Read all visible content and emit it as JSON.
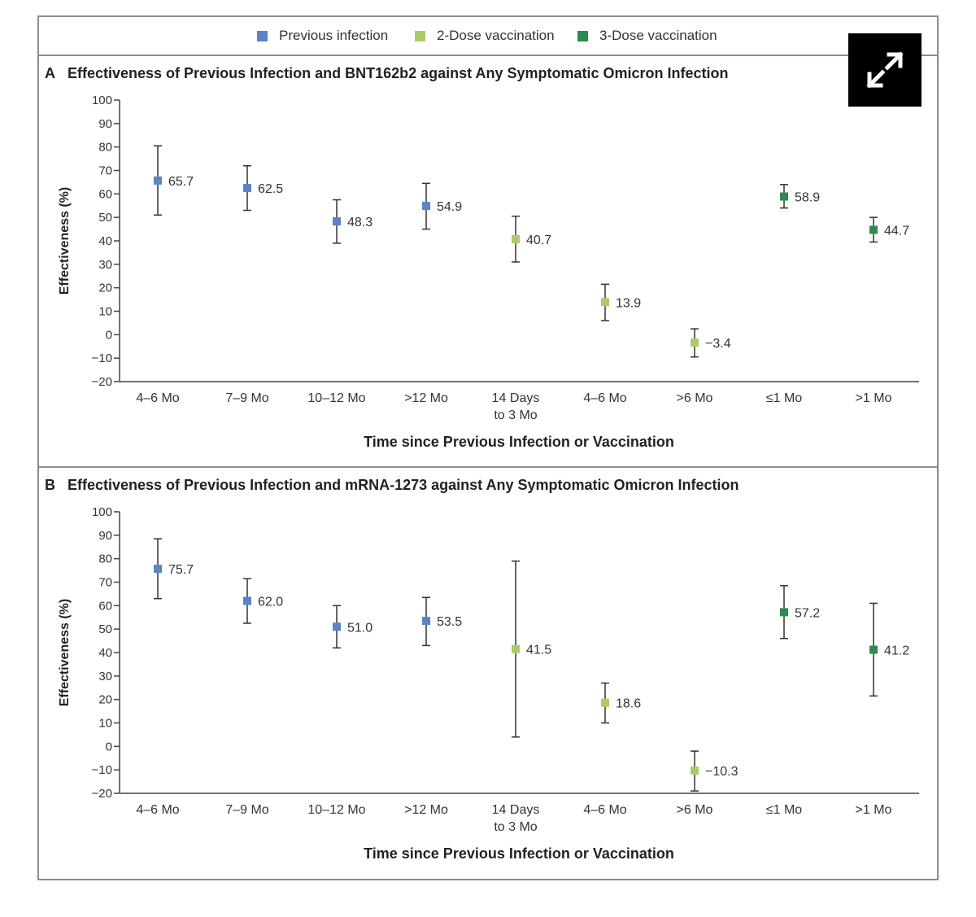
{
  "legend": [
    {
      "label": "Previous infection",
      "color": "#5b84c4"
    },
    {
      "label": "2-Dose vaccination",
      "color": "#a9cc6b"
    },
    {
      "label": "3-Dose vaccination",
      "color": "#2f8a4f"
    }
  ],
  "expand_icon": "expand-arrows-icon",
  "chart_data": [
    {
      "type": "scatter",
      "panel_letter": "A",
      "title": "Effectiveness of Previous Infection and BNT162b2 against Any Symptomatic Omicron Infection",
      "xlabel": "Time since Previous Infection or Vaccination",
      "ylabel": "Effectiveness (%)",
      "ylim": [
        -20,
        100
      ],
      "yticks": [
        100,
        90,
        80,
        70,
        60,
        50,
        40,
        30,
        20,
        10,
        0,
        -10,
        -20
      ],
      "categories": [
        [
          "4–6 Mo"
        ],
        [
          "7–9 Mo"
        ],
        [
          "10–12 Mo"
        ],
        [
          ">12 Mo"
        ],
        [
          "14 Days",
          "to 3 Mo"
        ],
        [
          "4–6 Mo"
        ],
        [
          ">6 Mo"
        ],
        [
          "≤1 Mo"
        ],
        [
          ">1 Mo"
        ]
      ],
      "points": [
        {
          "group": 0,
          "value": 65.7,
          "label": "65.7",
          "low": 51.0,
          "high": 80.5
        },
        {
          "group": 0,
          "value": 62.5,
          "label": "62.5",
          "low": 53.0,
          "high": 72.0
        },
        {
          "group": 0,
          "value": 48.3,
          "label": "48.3",
          "low": 39.0,
          "high": 57.5
        },
        {
          "group": 0,
          "value": 54.9,
          "label": "54.9",
          "low": 45.0,
          "high": 64.5
        },
        {
          "group": 1,
          "value": 40.7,
          "label": "40.7",
          "low": 31.0,
          "high": 50.5
        },
        {
          "group": 1,
          "value": 13.9,
          "label": "13.9",
          "low": 6.0,
          "high": 21.5
        },
        {
          "group": 1,
          "value": -3.4,
          "label": "−3.4",
          "low": -9.5,
          "high": 2.5
        },
        {
          "group": 2,
          "value": 58.9,
          "label": "58.9",
          "low": 54.0,
          "high": 64.0
        },
        {
          "group": 2,
          "value": 44.7,
          "label": "44.7",
          "low": 39.5,
          "high": 50.0
        }
      ]
    },
    {
      "type": "scatter",
      "panel_letter": "B",
      "title": "Effectiveness of Previous Infection and mRNA-1273 against Any Symptomatic Omicron Infection",
      "xlabel": "Time since Previous Infection or Vaccination",
      "ylabel": "Effectiveness (%)",
      "ylim": [
        -20,
        100
      ],
      "yticks": [
        100,
        90,
        80,
        70,
        60,
        50,
        40,
        30,
        20,
        10,
        0,
        -10,
        -20
      ],
      "categories": [
        [
          "4–6 Mo"
        ],
        [
          "7–9 Mo"
        ],
        [
          "10–12 Mo"
        ],
        [
          ">12 Mo"
        ],
        [
          "14 Days",
          "to 3 Mo"
        ],
        [
          "4–6 Mo"
        ],
        [
          ">6 Mo"
        ],
        [
          "≤1 Mo"
        ],
        [
          ">1 Mo"
        ]
      ],
      "points": [
        {
          "group": 0,
          "value": 75.7,
          "label": "75.7",
          "low": 63.0,
          "high": 88.5
        },
        {
          "group": 0,
          "value": 62.0,
          "label": "62.0",
          "low": 52.5,
          "high": 71.5
        },
        {
          "group": 0,
          "value": 51.0,
          "label": "51.0",
          "low": 42.0,
          "high": 60.0
        },
        {
          "group": 0,
          "value": 53.5,
          "label": "53.5",
          "low": 43.0,
          "high": 63.5
        },
        {
          "group": 1,
          "value": 41.5,
          "label": "41.5",
          "low": 4.0,
          "high": 79.0
        },
        {
          "group": 1,
          "value": 18.6,
          "label": "18.6",
          "low": 10.0,
          "high": 27.0
        },
        {
          "group": 1,
          "value": -10.3,
          "label": "−10.3",
          "low": -19.0,
          "high": -2.0
        },
        {
          "group": 2,
          "value": 57.2,
          "label": "57.2",
          "low": 46.0,
          "high": 68.5
        },
        {
          "group": 2,
          "value": 41.2,
          "label": "41.2",
          "low": 21.5,
          "high": 61.0
        }
      ]
    }
  ]
}
